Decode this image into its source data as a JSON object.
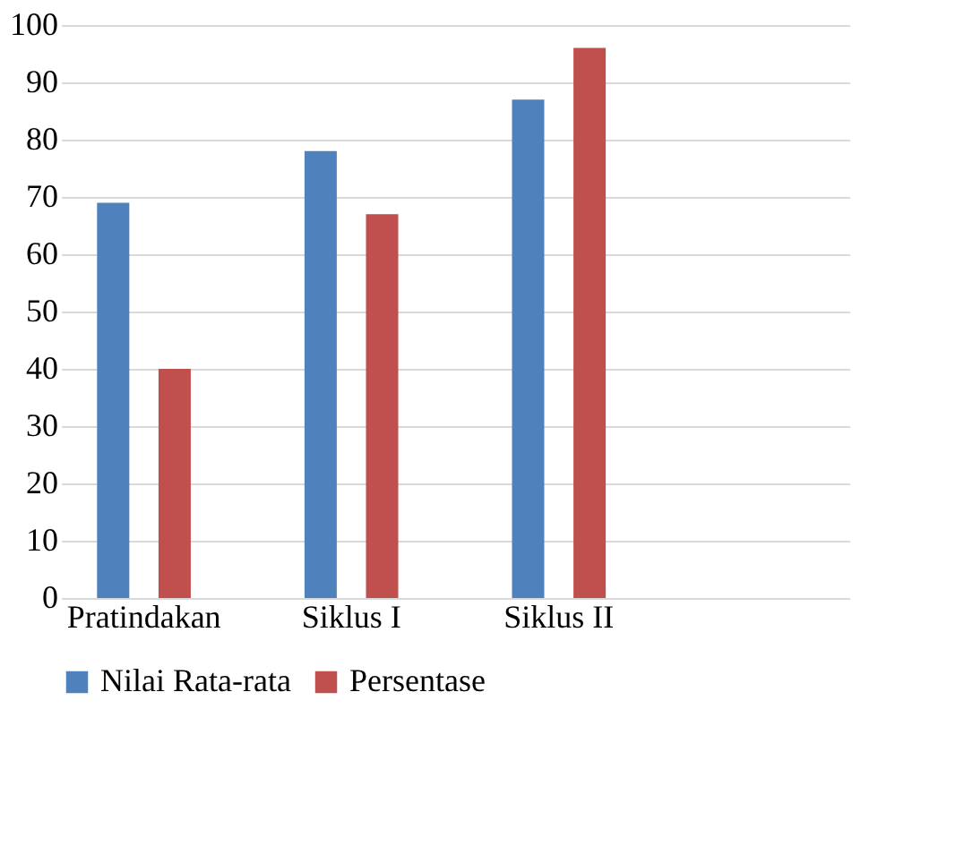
{
  "chart_data": {
    "type": "bar",
    "categories": [
      "Pratindakan",
      "Siklus I",
      "Siklus II",
      null
    ],
    "series": [
      {
        "name": "Nilai Rata-rata",
        "color": "#4f81bd",
        "values": [
          69,
          78,
          87,
          null
        ]
      },
      {
        "name": "Persentase",
        "color": "#c0504d",
        "values": [
          40,
          67,
          96,
          null
        ]
      }
    ],
    "ylim": [
      0,
      100
    ],
    "yticks": [
      0,
      10,
      20,
      30,
      40,
      50,
      60,
      70,
      80,
      90,
      100
    ],
    "grid": "y",
    "legend": "bottom"
  }
}
